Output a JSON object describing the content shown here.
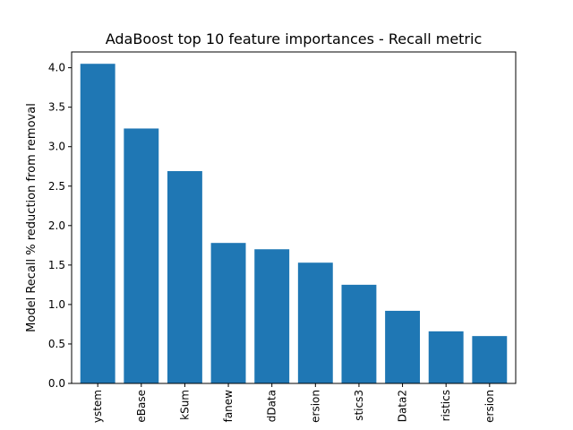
{
  "chart_data": {
    "type": "bar",
    "title": "AdaBoost top 10 feature importances - Recall metric",
    "xlabel": "",
    "ylabel": "Model Recall % reduction from removal",
    "ylim": [
      0,
      4.2
    ],
    "yticks": [
      "0.0",
      "0.5",
      "1.0",
      "1.5",
      "2.0",
      "2.5",
      "3.0",
      "3.5",
      "4.0"
    ],
    "categories": [
      "ystem",
      "eBase",
      "kSum",
      "fanew",
      "dData",
      "ersion",
      "stics3",
      "Data2",
      "ristics",
      "ersion"
    ],
    "values": [
      4.05,
      3.23,
      2.69,
      1.78,
      1.7,
      1.53,
      1.25,
      0.92,
      0.66,
      0.6
    ],
    "bar_color": "#1f77b4",
    "grid": false,
    "legend": "none"
  }
}
